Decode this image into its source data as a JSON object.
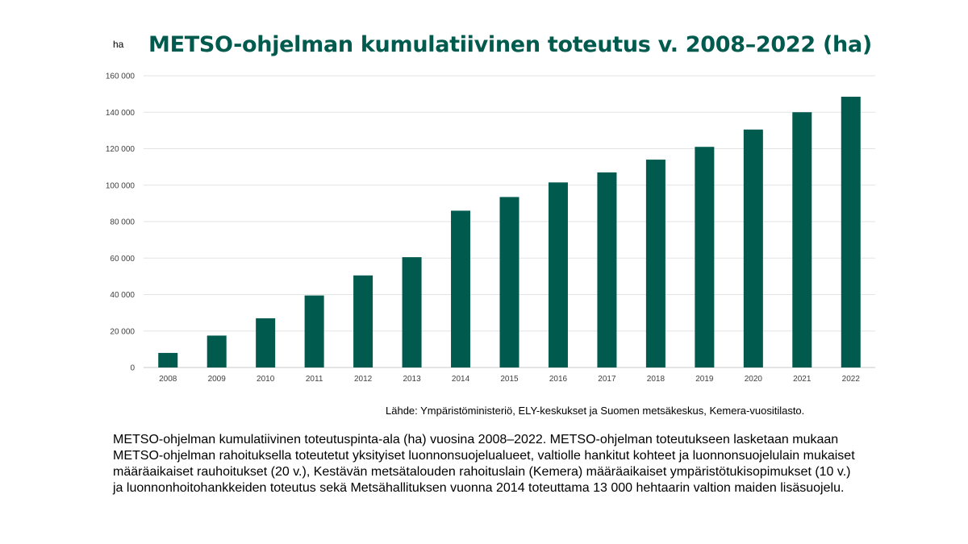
{
  "chart_data": {
    "type": "bar",
    "title": "METSO-ohjelman kumulatiivinen toteutus v. 2008–2022 (ha)",
    "ylabel": "ha",
    "xlabel": "",
    "categories": [
      "2008",
      "2009",
      "2010",
      "2011",
      "2012",
      "2013",
      "2014",
      "2015",
      "2016",
      "2017",
      "2018",
      "2019",
      "2020",
      "2021",
      "2022"
    ],
    "values": [
      8000,
      17500,
      27000,
      39500,
      50500,
      60500,
      86000,
      93500,
      101500,
      107000,
      114000,
      121000,
      130500,
      140000,
      148500
    ],
    "ylim": [
      0,
      160000
    ],
    "yticks": [
      0,
      20000,
      40000,
      60000,
      80000,
      100000,
      120000,
      140000,
      160000
    ],
    "ytick_labels": [
      "0",
      "20 000",
      "40 000",
      "60 000",
      "80 000",
      "100 000",
      "120 000",
      "140 000",
      "160 000"
    ],
    "grid": true,
    "legend": "none",
    "bar_color": "#005a4e",
    "grid_color": "#e3e3e3"
  },
  "source_text": "Lähde: Ympäristöministeriö, ELY-keskukset ja Suomen metsäkeskus, Kemera-vuositilasto.",
  "caption_text": "METSO-ohjelman kumulatiivinen toteutuspinta-ala (ha) vuosina 2008–2022. METSO-ohjelman toteutukseen lasketaan mukaan METSO-ohjelman rahoituksella toteutetut yksityiset luonnonsuojelualueet, valtiolle hankitut kohteet ja luonnonsuojelulain mukaiset määräaikaiset rauhoitukset (20 v.), Kestävän metsätalouden rahoituslain (Kemera) määräaikaiset ympäristötukisopimukset (10 v.) ja luonnonhoitohankkeiden toteutus sekä Metsähallituksen vuonna 2014 toteuttama 13 000 hehtaarin valtion maiden lisäsuojelu."
}
